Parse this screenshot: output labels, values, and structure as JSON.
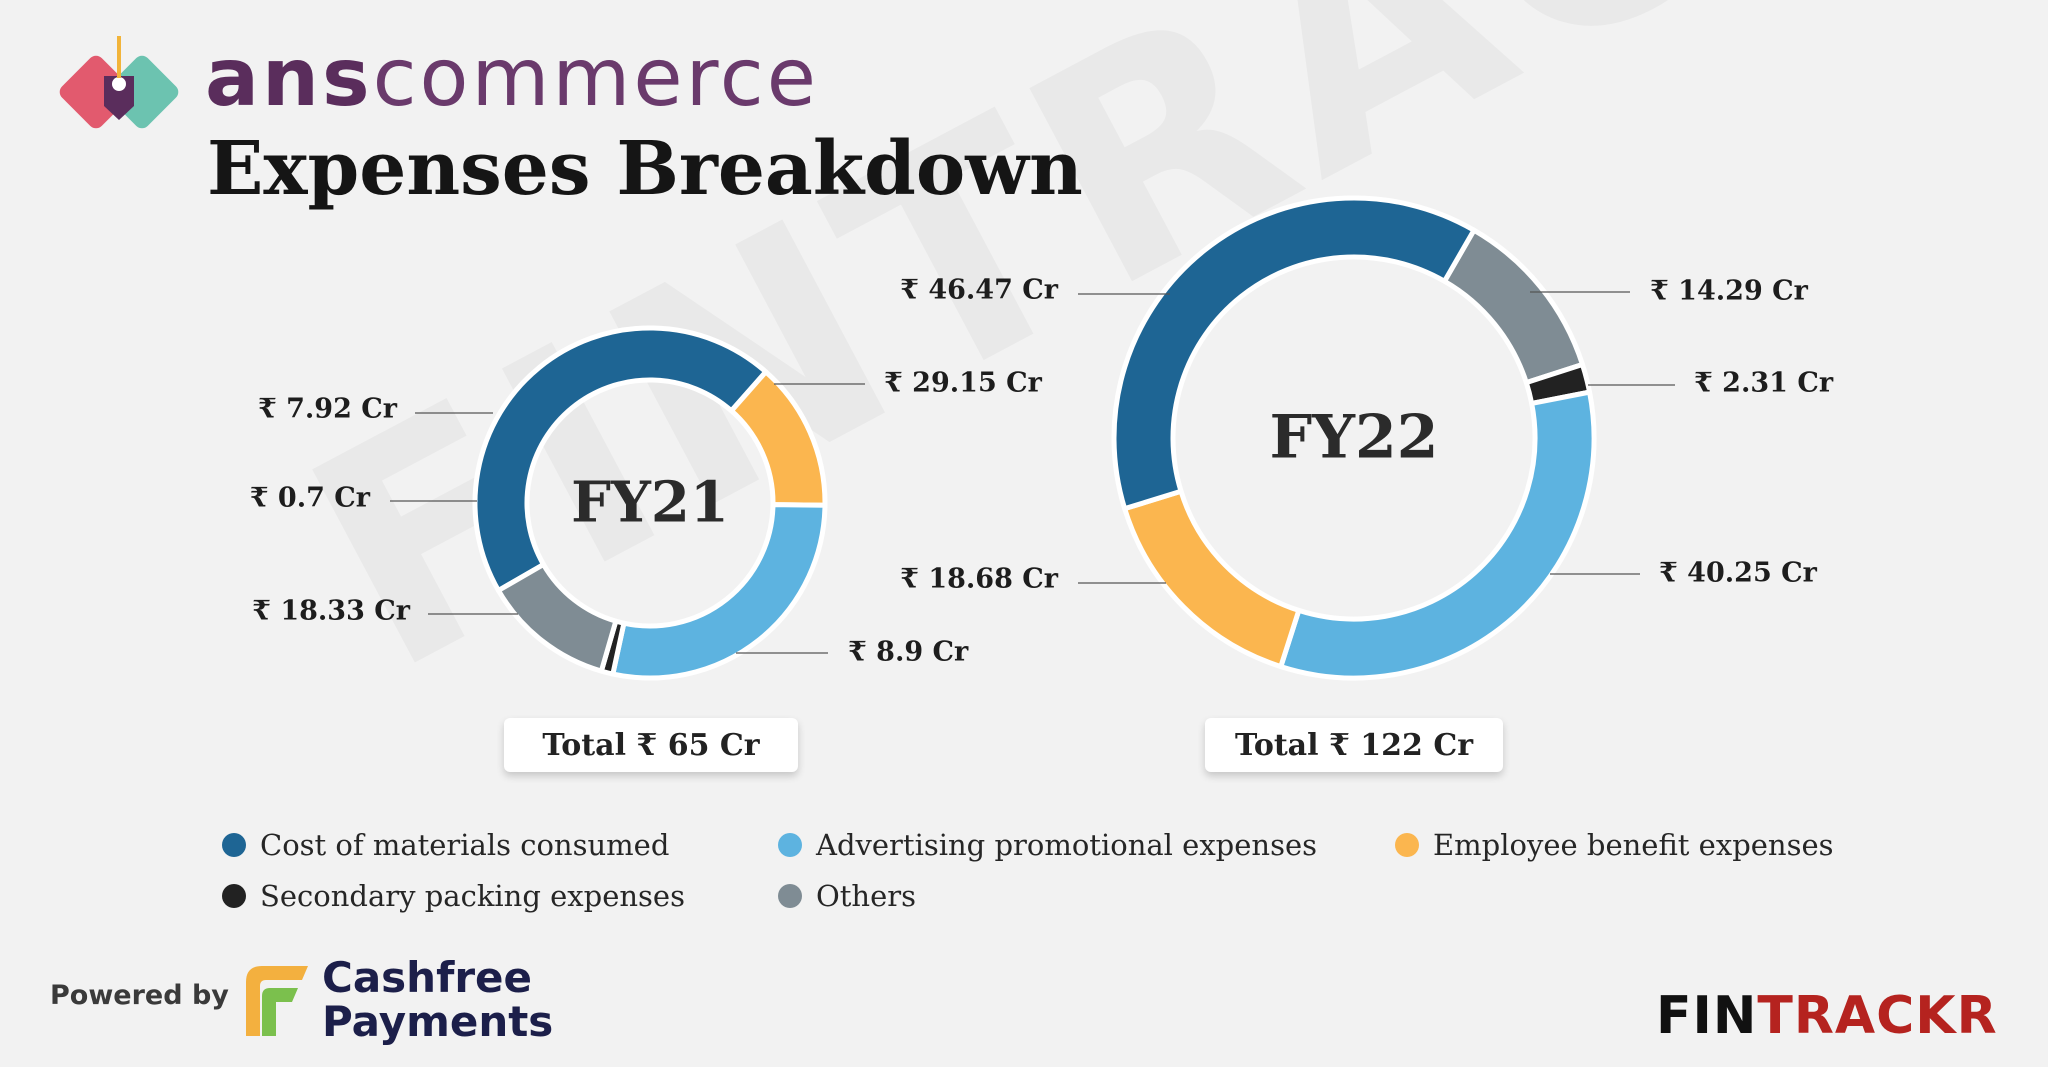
{
  "brand": {
    "bold": "ans",
    "light": "commerce"
  },
  "title": "Expenses Breakdown",
  "watermark": "FINTRACKR",
  "colors": {
    "cost_of_materials": "#1e6594",
    "advertising": "#5db3e0",
    "employee": "#fbb64f",
    "secondary_packing": "#222222",
    "others": "#7f8c94"
  },
  "chart_data": [
    {
      "type": "pie",
      "center_label": "FY21",
      "total_label": "Total ₹ 65 Cr",
      "slices": [
        {
          "category": "Cost of materials consumed",
          "value": 29.15,
          "label": "₹ 29.15 Cr",
          "color": "#1e6594"
        },
        {
          "category": "Employee benefit expenses",
          "value": 8.9,
          "label": "₹ 8.9 Cr",
          "color": "#fbb64f"
        },
        {
          "category": "Advertising promotional expenses",
          "value": 18.33,
          "label": "₹ 18.33 Cr",
          "color": "#5db3e0"
        },
        {
          "category": "Secondary packing expenses",
          "value": 0.7,
          "label": "₹ 0.7 Cr",
          "color": "#222222"
        },
        {
          "category": "Others",
          "value": 7.92,
          "label": "₹ 7.92 Cr",
          "color": "#7f8c94"
        }
      ]
    },
    {
      "type": "pie",
      "center_label": "FY22",
      "total_label": "Total ₹ 122 Cr",
      "slices": [
        {
          "category": "Others",
          "value": 14.29,
          "label": "₹ 14.29 Cr",
          "color": "#7f8c94"
        },
        {
          "category": "Secondary packing expenses",
          "value": 2.31,
          "label": "₹ 2.31 Cr",
          "color": "#222222"
        },
        {
          "category": "Advertising promotional expenses",
          "value": 40.25,
          "label": "₹ 40.25 Cr",
          "color": "#5db3e0"
        },
        {
          "category": "Employee benefit expenses",
          "value": 18.68,
          "label": "₹ 18.68 Cr",
          "color": "#fbb64f"
        },
        {
          "category": "Cost of materials consumed",
          "value": 46.47,
          "label": "₹ 46.47 Cr",
          "color": "#1e6594"
        }
      ]
    }
  ],
  "legend": [
    {
      "label": "Cost of materials consumed",
      "color": "#1e6594"
    },
    {
      "label": "Advertising promotional expenses",
      "color": "#5db3e0"
    },
    {
      "label": "Employee benefit expenses",
      "color": "#fbb64f"
    },
    {
      "label": "Secondary packing expenses",
      "color": "#222222"
    },
    {
      "label": "Others",
      "color": "#7f8c94"
    }
  ],
  "footer": {
    "powered_by": "Powered by",
    "cashfree_line1": "Cashfree",
    "cashfree_line2": "Payments",
    "fintrackr_dark": "FIN",
    "fintrackr_red": "TRACKR"
  }
}
